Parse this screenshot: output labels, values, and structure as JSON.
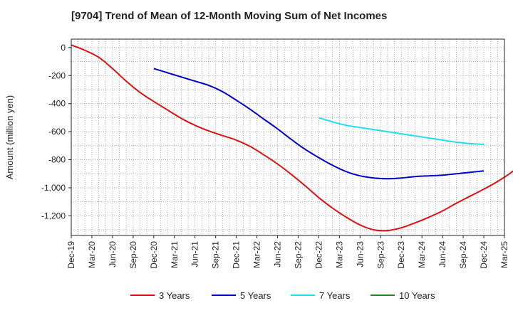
{
  "chart_data": {
    "type": "line",
    "title": "[9704]  Trend of Mean of 12-Month Moving Sum of Net Incomes",
    "ylabel": "Amount (million yen)",
    "xlabel": "",
    "ylim": [
      -1340,
      60
    ],
    "yticks": [
      0,
      -200,
      -400,
      -600,
      -800,
      -1000,
      -1200
    ],
    "ytick_labels": [
      "0",
      "-200",
      "-400",
      "-600",
      "-800",
      "-1,000",
      "-1,200"
    ],
    "x_start": "Dec-19",
    "x_end": "Mar-25",
    "xtick_labels": [
      "Dec-19",
      "Mar-20",
      "Jun-20",
      "Sep-20",
      "Dec-20",
      "Mar-21",
      "Jun-21",
      "Sep-21",
      "Dec-21",
      "Mar-22",
      "Jun-22",
      "Sep-22",
      "Dec-22",
      "Mar-23",
      "Jun-23",
      "Sep-23",
      "Dec-23",
      "Mar-24",
      "Jun-24",
      "Sep-24",
      "Dec-24",
      "Mar-25"
    ],
    "grid": true,
    "legend_position": "bottom",
    "series": [
      {
        "name": "3 Years",
        "color": "#dd1111",
        "start": "Dec-19",
        "values": [
          18,
          -20,
          -70,
          -150,
          -240,
          -320,
          -385,
          -445,
          -505,
          -555,
          -595,
          -628,
          -660,
          -705,
          -765,
          -830,
          -905,
          -985,
          -1070,
          -1145,
          -1210,
          -1265,
          -1300,
          -1305,
          -1285,
          -1250,
          -1210,
          -1165,
          -1110,
          -1060,
          -1010,
          -955,
          -890,
          -810,
          -720
        ]
      },
      {
        "name": "5 Years",
        "color": "#0000cc",
        "start": "Dec-20",
        "values": [
          -150,
          -180,
          -210,
          -240,
          -270,
          -315,
          -375,
          -440,
          -510,
          -580,
          -655,
          -725,
          -785,
          -840,
          -885,
          -915,
          -930,
          -935,
          -930,
          -920,
          -915,
          -910,
          -900,
          -890,
          -880
        ]
      },
      {
        "name": "7 Years",
        "color": "#22ddee",
        "start": "Dec-22",
        "values": [
          -500,
          -530,
          -555,
          -570,
          -585,
          -600,
          -615,
          -630,
          -645,
          -660,
          -675,
          -685,
          -690
        ]
      },
      {
        "name": "10 Years",
        "color": "#228822",
        "start": "Dec-24",
        "values": []
      }
    ]
  }
}
